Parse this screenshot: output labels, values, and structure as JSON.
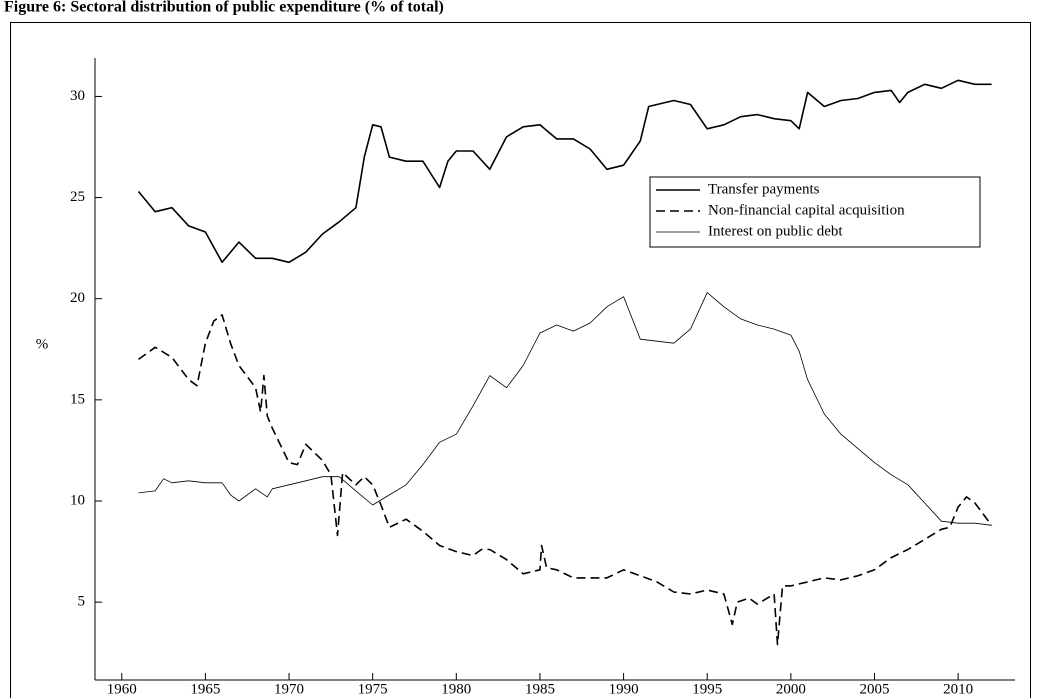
{
  "chart_data": {
    "type": "line",
    "title": "Figure 6: Sectoral distribution of public expenditure (% of total)",
    "y_label": "%",
    "xlim": [
      1958.4,
      2013.4
    ],
    "ylim": [
      1.15,
      31.9
    ],
    "xticks": [
      1960,
      1965,
      1970,
      1975,
      1980,
      1985,
      1990,
      1995,
      2000,
      2005,
      2010
    ],
    "yticks": [
      5,
      10,
      15,
      20,
      25,
      30
    ],
    "legend": "upper right",
    "series": [
      {
        "name": "Transfer payments",
        "color": "#000000",
        "line_style": "solid",
        "line_width": 1.6,
        "x": [
          1961,
          1962,
          1963,
          1964,
          1965,
          1966,
          1967,
          1968,
          1969,
          1970,
          1971,
          1972,
          1973,
          1974,
          1974.5,
          1975,
          1975.5,
          1976,
          1977,
          1978,
          1979,
          1979.5,
          1980,
          1981,
          1982,
          1983,
          1984,
          1985,
          1986,
          1987,
          1988,
          1989,
          1990,
          1991,
          1991.5,
          1992,
          1993,
          1994,
          1995,
          1996,
          1997,
          1998,
          1999,
          2000,
          2000.5,
          2001,
          2002,
          2003,
          2004,
          2005,
          2006,
          2006.5,
          2007,
          2008,
          2009,
          2010,
          2011,
          2012
        ],
        "values": [
          25.3,
          24.3,
          24.5,
          23.6,
          23.3,
          21.8,
          22.8,
          22.0,
          22.0,
          21.8,
          22.3,
          23.2,
          23.8,
          24.5,
          27.0,
          28.6,
          28.5,
          27.0,
          26.8,
          26.8,
          25.5,
          26.8,
          27.3,
          27.3,
          26.4,
          28.0,
          28.5,
          28.6,
          27.9,
          27.9,
          27.4,
          26.4,
          26.6,
          27.8,
          29.5,
          29.6,
          29.8,
          29.6,
          28.4,
          28.6,
          29.0,
          29.1,
          28.9,
          28.8,
          28.4,
          30.2,
          29.5,
          29.8,
          29.9,
          30.2,
          30.3,
          29.7,
          30.2,
          30.6,
          30.4,
          30.8,
          30.6,
          30.6
        ]
      },
      {
        "name": "Non-financial capital acquisition",
        "color": "#000000",
        "line_style": "dashed",
        "line_width": 1.6,
        "x": [
          1961,
          1962,
          1963,
          1964,
          1964.5,
          1965,
          1965.5,
          1966,
          1966.5,
          1967,
          1968,
          1968.3,
          1968.5,
          1968.7,
          1969,
          1970,
          1970.5,
          1971,
          1972,
          1972.5,
          1972.9,
          1973.2,
          1974,
          1974.5,
          1975,
          1975.5,
          1976,
          1977,
          1978,
          1979,
          1980,
          1981,
          1981.5,
          1982,
          1983,
          1984,
          1985,
          1985.1,
          1985.4,
          1986,
          1987,
          1988,
          1989,
          1990,
          1991,
          1992,
          1993,
          1994,
          1995,
          1996,
          1996.5,
          1996.8,
          1997.5,
          1998,
          1999,
          1999.2,
          1999.5,
          2000,
          2001,
          2002,
          2003,
          2004,
          2005,
          2006,
          2007,
          2008,
          2009,
          2009.5,
          2010,
          2010.5,
          2011,
          2012
        ],
        "values": [
          17.0,
          17.6,
          17.1,
          16.0,
          15.7,
          17.8,
          18.9,
          19.2,
          17.8,
          16.7,
          15.6,
          14.4,
          16.2,
          14.2,
          13.6,
          11.9,
          11.8,
          12.8,
          12.0,
          11.3,
          8.3,
          11.4,
          10.8,
          11.2,
          10.8,
          9.8,
          8.7,
          9.1,
          8.5,
          7.8,
          7.5,
          7.3,
          7.6,
          7.6,
          7.1,
          6.4,
          6.6,
          7.8,
          6.7,
          6.6,
          6.2,
          6.2,
          6.2,
          6.6,
          6.3,
          6.0,
          5.5,
          5.4,
          5.6,
          5.4,
          3.9,
          5.0,
          5.2,
          4.9,
          5.4,
          2.9,
          5.8,
          5.8,
          6.0,
          6.2,
          6.1,
          6.3,
          6.6,
          7.2,
          7.6,
          8.1,
          8.6,
          8.7,
          9.7,
          10.2,
          9.9,
          8.8
        ]
      },
      {
        "name": "Interest on public debt",
        "color": "#000000",
        "line_style": "solid",
        "line_width": 0.8,
        "x": [
          1961,
          1962,
          1962.5,
          1963,
          1964,
          1965,
          1966,
          1966.5,
          1967,
          1968,
          1968.7,
          1969,
          1970,
          1971,
          1972,
          1973,
          1974,
          1975,
          1976,
          1977,
          1978,
          1979,
          1980,
          1981,
          1982,
          1983,
          1984,
          1985,
          1986,
          1987,
          1988,
          1989,
          1990,
          1991,
          1992,
          1993,
          1994,
          1995,
          1996,
          1997,
          1998,
          1999,
          2000,
          2000.5,
          2001,
          2002,
          2003,
          2004,
          2005,
          2006,
          2007,
          2008,
          2009,
          2010,
          2011,
          2012
        ],
        "values": [
          10.4,
          10.5,
          11.1,
          10.9,
          11.0,
          10.9,
          10.9,
          10.3,
          10.0,
          10.6,
          10.2,
          10.6,
          10.8,
          11.0,
          11.2,
          11.2,
          10.5,
          9.8,
          10.3,
          10.8,
          11.8,
          12.9,
          13.3,
          14.7,
          16.2,
          15.6,
          16.7,
          18.3,
          18.7,
          18.4,
          18.8,
          19.6,
          20.1,
          18.0,
          17.9,
          17.8,
          18.5,
          20.3,
          19.6,
          19.0,
          18.7,
          18.5,
          18.2,
          17.4,
          16.0,
          14.3,
          13.3,
          12.6,
          11.9,
          11.3,
          10.8,
          9.9,
          9.0,
          8.9,
          8.9,
          8.8
        ]
      }
    ]
  }
}
